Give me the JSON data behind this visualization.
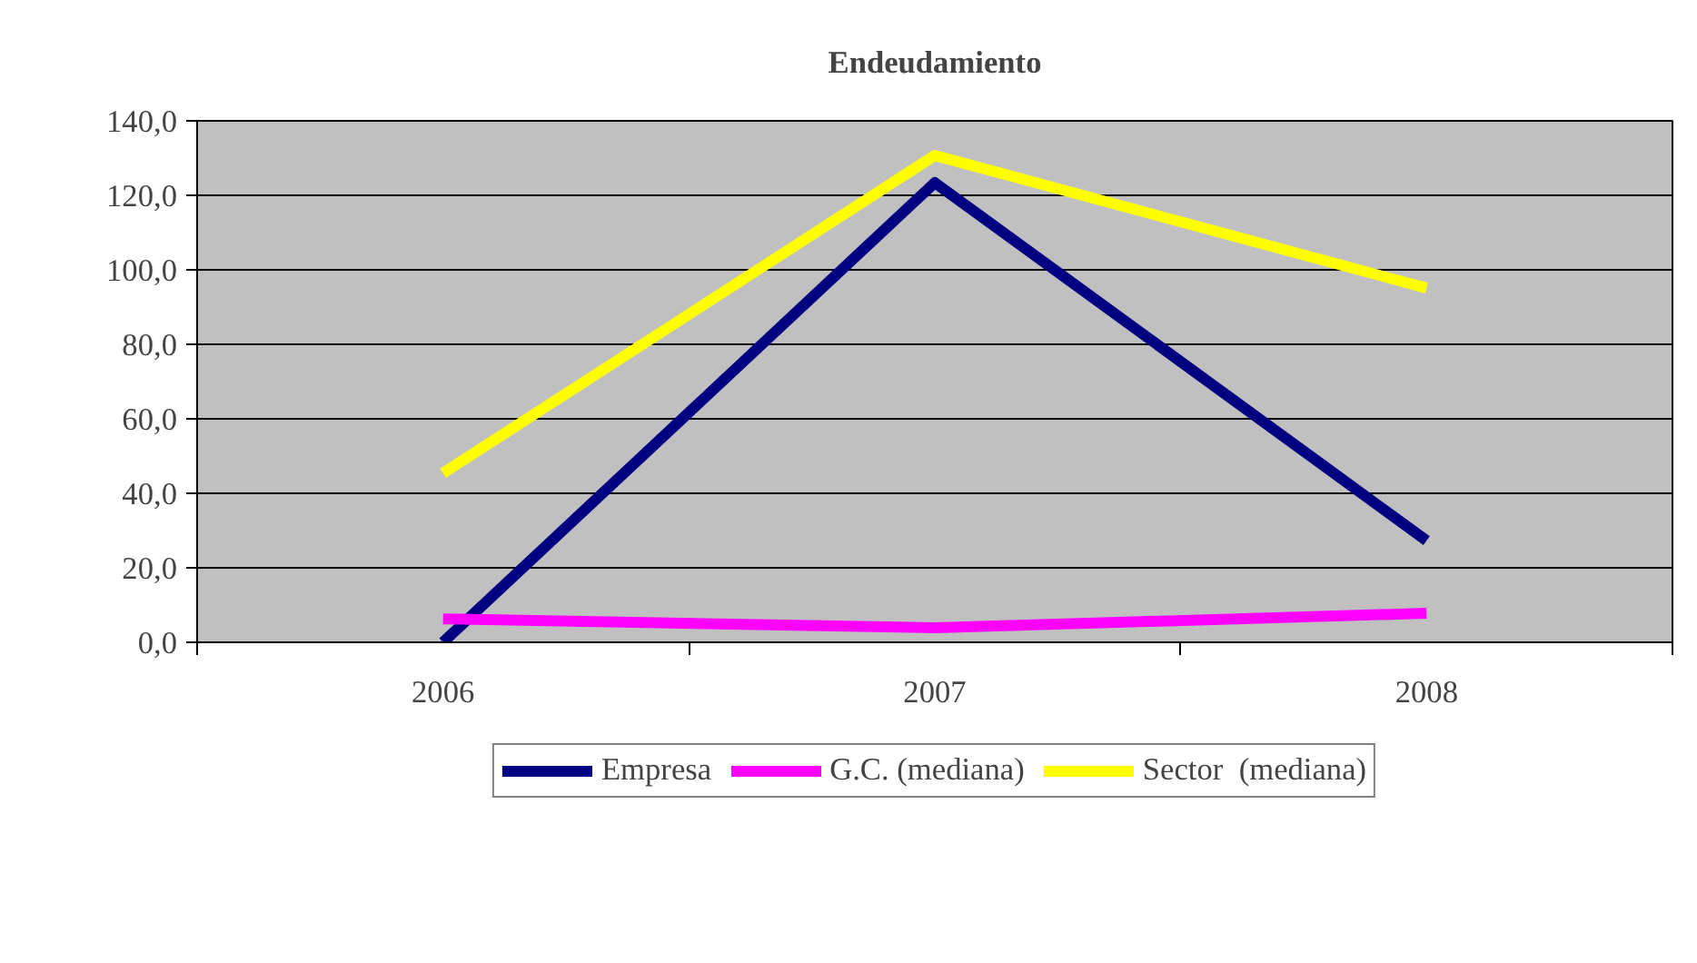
{
  "chart_data": {
    "type": "line",
    "title": "Endeudamiento",
    "categories": [
      "2006",
      "2007",
      "2008"
    ],
    "series": [
      {
        "name": "Empresa",
        "color": "#000080",
        "values": [
          0.0,
          123.4,
          27.3
        ]
      },
      {
        "name": "G.C. (mediana)",
        "color": "#ff00ff",
        "values": [
          6.3,
          3.9,
          7.8
        ]
      },
      {
        "name": "Sector  (mediana)",
        "color": "#ffff00",
        "values": [
          45.4,
          130.7,
          95.1
        ]
      }
    ],
    "ylim": [
      0,
      140
    ],
    "yticks": [
      {
        "value": 0,
        "label": "0,0"
      },
      {
        "value": 20,
        "label": "20,0"
      },
      {
        "value": 40,
        "label": "40,0"
      },
      {
        "value": 60,
        "label": "60,0"
      },
      {
        "value": 80,
        "label": "80,0"
      },
      {
        "value": 100,
        "label": "100,0"
      },
      {
        "value": 120,
        "label": "120,0"
      },
      {
        "value": 140,
        "label": "140,0"
      }
    ],
    "grid": "y",
    "legend": "bottom",
    "marker": "none",
    "line_style": "solid"
  }
}
